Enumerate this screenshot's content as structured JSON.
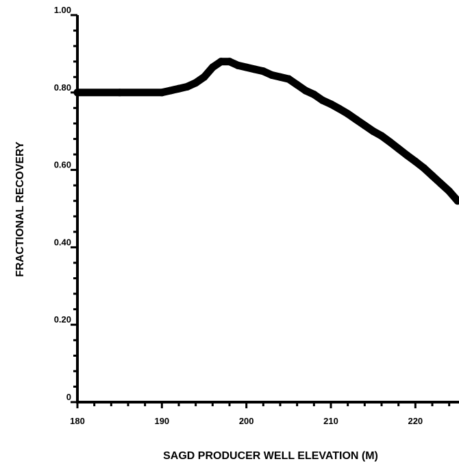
{
  "chart_data": {
    "type": "line",
    "title": "",
    "xlabel": "SAGD PRODUCER WELL ELEVATION (M)",
    "ylabel": "FRACTIONAL RECOVERY",
    "xlim": [
      180,
      225
    ],
    "ylim": [
      0,
      1.0
    ],
    "x_ticks": [
      180,
      190,
      200,
      210,
      220
    ],
    "x_tick_labels": [
      "180",
      "190",
      "200",
      "210",
      "220"
    ],
    "y_ticks": [
      0,
      0.2,
      0.4,
      0.6,
      0.8,
      1.0
    ],
    "y_tick_labels": [
      "0",
      "0.20",
      "0.40",
      "0.60",
      "0.80",
      "1.00"
    ],
    "grid": false,
    "series": [
      {
        "color": "#000000",
        "x": [
          180,
          185,
          190,
          191,
          192,
          193,
          194,
          195,
          196,
          197,
          198,
          199,
          200,
          201,
          202,
          203,
          204,
          205,
          206,
          207,
          208,
          209,
          210,
          211,
          212,
          213,
          214,
          215,
          216,
          217,
          218,
          219,
          220,
          221,
          222,
          223,
          224,
          225
        ],
        "y": [
          0.8,
          0.8,
          0.8,
          0.805,
          0.81,
          0.815,
          0.825,
          0.84,
          0.865,
          0.88,
          0.88,
          0.87,
          0.865,
          0.86,
          0.855,
          0.845,
          0.84,
          0.835,
          0.82,
          0.805,
          0.795,
          0.78,
          0.77,
          0.758,
          0.745,
          0.73,
          0.715,
          0.7,
          0.688,
          0.672,
          0.655,
          0.638,
          0.622,
          0.605,
          0.585,
          0.565,
          0.545,
          0.52
        ]
      }
    ]
  }
}
